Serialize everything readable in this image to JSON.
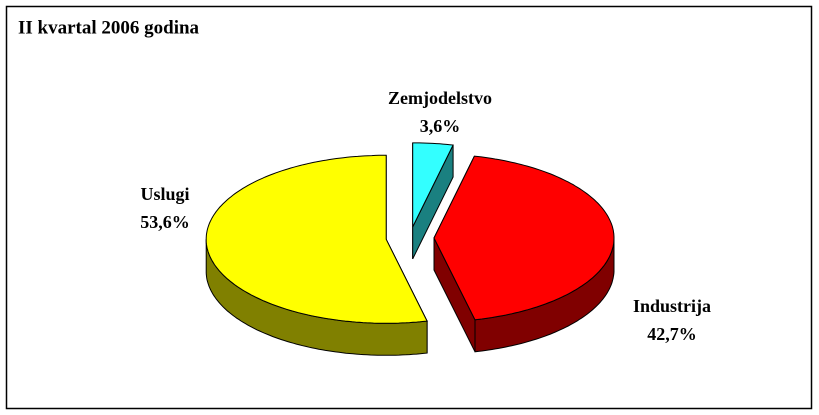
{
  "chart_data": {
    "type": "pie",
    "title": "II kvartal 2006 godina",
    "categories": [
      "Zemjodelstvo",
      "Industrija",
      "Uslugi"
    ],
    "values": [
      3.6,
      42.7,
      53.6
    ],
    "value_labels": [
      "3,6%",
      "42,7%",
      "53,6%"
    ],
    "colors": [
      "#33ffff",
      "#ff0000",
      "#ffff00"
    ]
  }
}
